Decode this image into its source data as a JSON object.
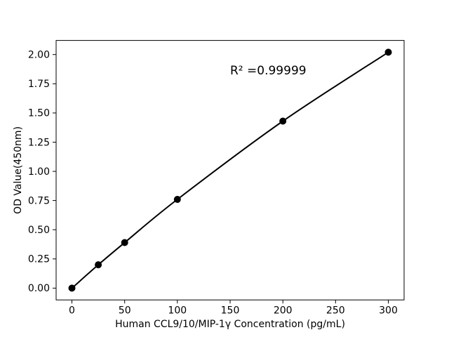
{
  "figure": {
    "background_color": "#ffffff",
    "axes_color": "#000000",
    "text_color": "#000000"
  },
  "chart_data": {
    "type": "line",
    "title": "",
    "xlabel": "Human CCL9/10/MIP-1γ Concentration (pg/mL)",
    "ylabel": "OD Value(450nm)",
    "annotation": {
      "text": "R² =0.99999",
      "x": 150,
      "y": 1.83
    },
    "series": [
      {
        "name": "standard-curve",
        "x": [
          0,
          25,
          50,
          100,
          200,
          300
        ],
        "y": [
          0.0,
          0.2,
          0.39,
          0.76,
          1.43,
          2.02
        ],
        "line_color": "#000000",
        "marker": "circle",
        "marker_color": "#000000",
        "marker_radius_px": 5
      }
    ],
    "xlim": [
      -15,
      315
    ],
    "ylim": [
      -0.101,
      2.121
    ],
    "x_ticks": {
      "values": [
        0,
        50,
        100,
        150,
        200,
        250,
        300
      ],
      "labels": [
        "0",
        "50",
        "100",
        "150",
        "200",
        "250",
        "300"
      ]
    },
    "y_ticks": {
      "values": [
        0,
        0.25,
        0.5,
        0.75,
        1.0,
        1.25,
        1.5,
        1.75,
        2.0
      ],
      "labels": [
        "0.00",
        "0.25",
        "0.50",
        "0.75",
        "1.00",
        "1.25",
        "1.50",
        "1.75",
        "2.00"
      ]
    },
    "grid": false,
    "legend": "none"
  }
}
